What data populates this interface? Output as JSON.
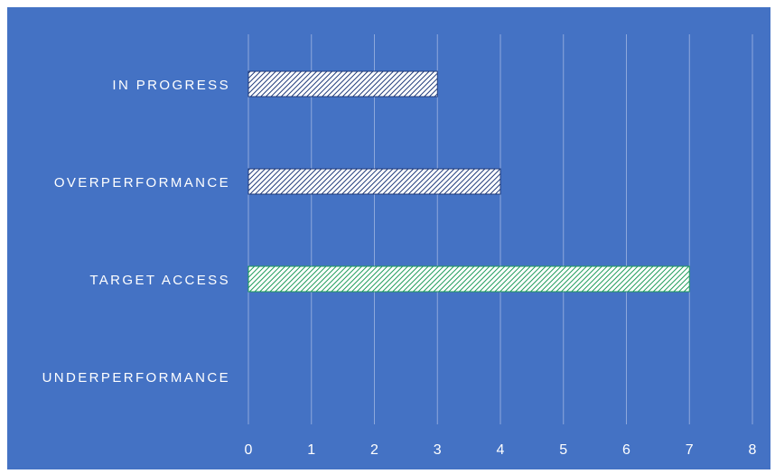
{
  "chart_data": {
    "type": "bar",
    "orientation": "horizontal",
    "categories": [
      "IN PROGRESS",
      "OVERPERFORMANCE",
      "TARGET ACCESS",
      "UNDERPERFORMANCE"
    ],
    "values": [
      3,
      4,
      7,
      0
    ],
    "bar_colors": [
      "#1F3A7A",
      "#1F3A7A",
      "#1E9B5A",
      "#1F3A7A"
    ],
    "bar_fill_pattern": "diagonal-hatch",
    "xlim": [
      0,
      8
    ],
    "x_ticks": [
      "0",
      "1",
      "2",
      "3",
      "4",
      "5",
      "6",
      "7",
      "8"
    ],
    "grid": "vertical",
    "legend": "none",
    "title": "",
    "xlabel": "",
    "ylabel": ""
  },
  "colors": {
    "background": "#4472C4",
    "gridline": "#8EA8DC",
    "label_text": "#FFFFFF",
    "bar_base": "#FFFFFF"
  }
}
